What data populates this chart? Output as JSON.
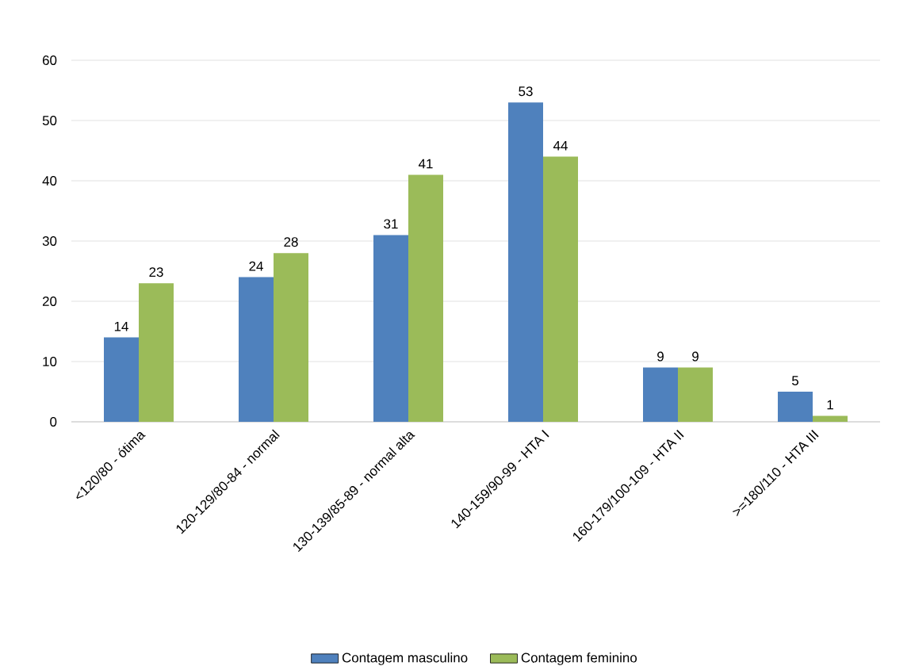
{
  "chart_data": {
    "type": "bar",
    "categories": [
      "<120/80 - ótima",
      "120-129/80-84 - normal",
      "130-139/85-89 - normal alta",
      "140-159/90-99 - HTA I",
      "160-179/100-109 - HTA II",
      ">=180/110 - HTA III"
    ],
    "series": [
      {
        "name": "Contagem masculino",
        "color": "#4f81bd",
        "values": [
          14,
          24,
          31,
          53,
          9,
          5
        ]
      },
      {
        "name": "Contagem feminino",
        "color": "#9bbb59",
        "values": [
          23,
          28,
          41,
          44,
          9,
          1
        ]
      }
    ],
    "ylim": [
      0,
      60
    ],
    "yticks": [
      0,
      10,
      20,
      30,
      40,
      50,
      60
    ],
    "grid": "y",
    "legend": "bottom",
    "data_labels": true
  }
}
